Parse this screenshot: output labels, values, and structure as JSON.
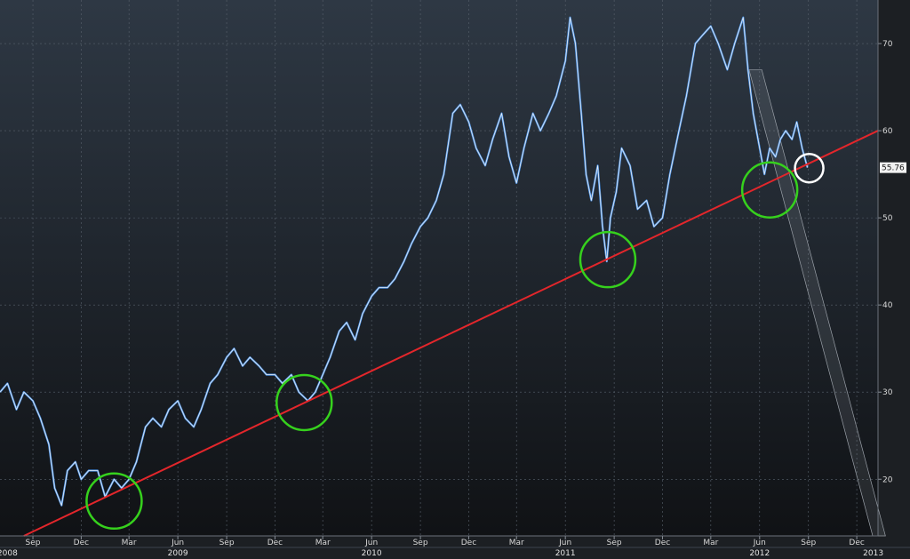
{
  "chart_data": {
    "type": "line",
    "title": "",
    "xlabel": "",
    "ylabel": "",
    "x_range": [
      "2008-07-01",
      "2013-01-10"
    ],
    "ylim": [
      13.5,
      75
    ],
    "grid": true,
    "y_ticks": [
      20,
      30,
      40,
      50,
      60,
      70
    ],
    "y_tick_labels": [
      "20",
      "30",
      "40",
      "50",
      "60",
      "70"
    ],
    "x_ticks": [
      {
        "date": "2008-09-01",
        "label": "Sep"
      },
      {
        "date": "2008-12-01",
        "label": "Dec"
      },
      {
        "date": "2009-03-01",
        "label": "Mar"
      },
      {
        "date": "2009-06-01",
        "label": "Jun"
      },
      {
        "date": "2009-09-01",
        "label": "Sep"
      },
      {
        "date": "2009-12-01",
        "label": "Dec"
      },
      {
        "date": "2010-03-01",
        "label": "Mar"
      },
      {
        "date": "2010-06-01",
        "label": "Jun"
      },
      {
        "date": "2010-09-01",
        "label": "Sep"
      },
      {
        "date": "2010-12-01",
        "label": "Dec"
      },
      {
        "date": "2011-03-01",
        "label": "Mar"
      },
      {
        "date": "2011-06-01",
        "label": "Jun"
      },
      {
        "date": "2011-09-01",
        "label": "Sep"
      },
      {
        "date": "2011-12-01",
        "label": "Dec"
      },
      {
        "date": "2012-03-01",
        "label": "Mar"
      },
      {
        "date": "2012-06-01",
        "label": "Jun"
      },
      {
        "date": "2012-09-01",
        "label": "Sep"
      },
      {
        "date": "2012-12-01",
        "label": "Dec"
      }
    ],
    "years": [
      {
        "date": "2008-07-15",
        "label": "2008"
      },
      {
        "date": "2009-06-01",
        "label": "2009"
      },
      {
        "date": "2010-06-01",
        "label": "2010"
      },
      {
        "date": "2011-06-01",
        "label": "2011"
      },
      {
        "date": "2012-06-01",
        "label": "2012"
      },
      {
        "date": "2013-01-01",
        "label": "2013"
      }
    ],
    "last_value_label": "55.76",
    "last_value": 55.76,
    "series": [
      {
        "color": "#4a8fe0",
        "points": [
          [
            "2008-07-01",
            30
          ],
          [
            "2008-07-15",
            31
          ],
          [
            "2008-08-01",
            28
          ],
          [
            "2008-08-15",
            30
          ],
          [
            "2008-09-01",
            29
          ],
          [
            "2008-09-15",
            27
          ],
          [
            "2008-10-01",
            24
          ],
          [
            "2008-10-12",
            19
          ],
          [
            "2008-10-25",
            17
          ],
          [
            "2008-11-05",
            21
          ],
          [
            "2008-11-20",
            22
          ],
          [
            "2008-12-01",
            20
          ],
          [
            "2008-12-15",
            21
          ],
          [
            "2009-01-01",
            21
          ],
          [
            "2009-01-15",
            18
          ],
          [
            "2009-02-01",
            20
          ],
          [
            "2009-02-15",
            19
          ],
          [
            "2009-03-01",
            20
          ],
          [
            "2009-03-15",
            22
          ],
          [
            "2009-04-01",
            26
          ],
          [
            "2009-04-15",
            27
          ],
          [
            "2009-05-01",
            26
          ],
          [
            "2009-05-15",
            28
          ],
          [
            "2009-06-01",
            29
          ],
          [
            "2009-06-15",
            27
          ],
          [
            "2009-07-01",
            26
          ],
          [
            "2009-07-15",
            28
          ],
          [
            "2009-08-01",
            31
          ],
          [
            "2009-08-15",
            32
          ],
          [
            "2009-09-01",
            34
          ],
          [
            "2009-09-15",
            35
          ],
          [
            "2009-10-01",
            33
          ],
          [
            "2009-10-15",
            34
          ],
          [
            "2009-11-01",
            33
          ],
          [
            "2009-11-15",
            32
          ],
          [
            "2009-12-01",
            32
          ],
          [
            "2009-12-15",
            31
          ],
          [
            "2010-01-01",
            32
          ],
          [
            "2010-01-15",
            30
          ],
          [
            "2010-02-01",
            29
          ],
          [
            "2010-02-15",
            30
          ],
          [
            "2010-03-01",
            32
          ],
          [
            "2010-03-15",
            34
          ],
          [
            "2010-04-01",
            37
          ],
          [
            "2010-04-15",
            38
          ],
          [
            "2010-05-01",
            36
          ],
          [
            "2010-05-15",
            39
          ],
          [
            "2010-06-01",
            41
          ],
          [
            "2010-06-15",
            42
          ],
          [
            "2010-07-01",
            42
          ],
          [
            "2010-07-15",
            43
          ],
          [
            "2010-08-01",
            45
          ],
          [
            "2010-08-15",
            47
          ],
          [
            "2010-09-01",
            49
          ],
          [
            "2010-09-15",
            50
          ],
          [
            "2010-10-01",
            52
          ],
          [
            "2010-10-15",
            55
          ],
          [
            "2010-11-01",
            62
          ],
          [
            "2010-11-15",
            63
          ],
          [
            "2010-12-01",
            61
          ],
          [
            "2010-12-15",
            58
          ],
          [
            "2011-01-01",
            56
          ],
          [
            "2011-01-15",
            59
          ],
          [
            "2011-02-01",
            62
          ],
          [
            "2011-02-15",
            57
          ],
          [
            "2011-03-01",
            54
          ],
          [
            "2011-03-15",
            58
          ],
          [
            "2011-04-01",
            62
          ],
          [
            "2011-04-15",
            60
          ],
          [
            "2011-05-01",
            62
          ],
          [
            "2011-05-15",
            64
          ],
          [
            "2011-06-01",
            68
          ],
          [
            "2011-06-10",
            73
          ],
          [
            "2011-06-20",
            70
          ],
          [
            "2011-07-01",
            62
          ],
          [
            "2011-07-10",
            55
          ],
          [
            "2011-07-20",
            52
          ],
          [
            "2011-08-01",
            56
          ],
          [
            "2011-08-10",
            49
          ],
          [
            "2011-08-18",
            45
          ],
          [
            "2011-08-25",
            50
          ],
          [
            "2011-09-05",
            53
          ],
          [
            "2011-09-15",
            58
          ],
          [
            "2011-10-01",
            56
          ],
          [
            "2011-10-15",
            51
          ],
          [
            "2011-11-01",
            52
          ],
          [
            "2011-11-15",
            49
          ],
          [
            "2011-12-01",
            50
          ],
          [
            "2011-12-15",
            55
          ],
          [
            "2012-01-01",
            60
          ],
          [
            "2012-01-15",
            64
          ],
          [
            "2012-02-01",
            70
          ],
          [
            "2012-02-15",
            71
          ],
          [
            "2012-03-01",
            72
          ],
          [
            "2012-03-15",
            70
          ],
          [
            "2012-04-01",
            67
          ],
          [
            "2012-04-15",
            70
          ],
          [
            "2012-05-01",
            73
          ],
          [
            "2012-05-10",
            67
          ],
          [
            "2012-05-20",
            62
          ],
          [
            "2012-06-01",
            58
          ],
          [
            "2012-06-10",
            55
          ],
          [
            "2012-06-20",
            58
          ],
          [
            "2012-07-01",
            57
          ],
          [
            "2012-07-10",
            59
          ],
          [
            "2012-07-20",
            60
          ],
          [
            "2012-08-01",
            59
          ],
          [
            "2012-08-10",
            61
          ],
          [
            "2012-08-20",
            58
          ],
          [
            "2012-08-30",
            55.76
          ]
        ]
      }
    ],
    "annotations": {
      "trend_line": {
        "color": "#e3262b",
        "from": [
          "2008-08-15",
          13.5
        ],
        "to": [
          "2013-01-10",
          60
        ]
      },
      "down_channel": {
        "color": "#9aa0a8",
        "from": [
          "2012-05-12",
          67
        ],
        "to": [
          "2012-12-31",
          13.5
        ],
        "width_days": 24
      },
      "green_circles": [
        {
          "date": "2009-02-01",
          "value": 17.5
        },
        {
          "date": "2010-01-25",
          "value": 28.8
        },
        {
          "date": "2011-08-20",
          "value": 45.2
        },
        {
          "date": "2012-06-20",
          "value": 53.2
        }
      ],
      "white_circle": {
        "date": "2012-08-30",
        "value": 55.7
      },
      "green_color": "#36d11d",
      "white_color": "#ffffff"
    }
  }
}
